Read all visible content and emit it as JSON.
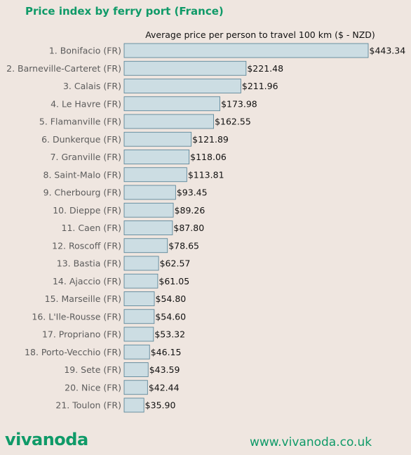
{
  "title": "Price index by ferry port (France)",
  "logo_text": "vivanoda",
  "website": "www.vivanoda.co.uk",
  "colors": {
    "background": "#efe6e0",
    "bar_fill": "#ccdde3",
    "bar_stroke": "#4f7d92",
    "brand": "#0f9a68"
  },
  "chart_data": {
    "type": "bar",
    "orientation": "horizontal",
    "subtitle": "Average price per person to travel 100 km ($ - NZD)",
    "categories": [
      "1. Bonifacio (FR)",
      "2. Barneville-Carteret (FR)",
      "3. Calais (FR)",
      "4. Le Havre (FR)",
      "5. Flamanville (FR)",
      "6. Dunkerque (FR)",
      "7. Granville (FR)",
      "8. Saint-Malo (FR)",
      "9. Cherbourg (FR)",
      "10. Dieppe (FR)",
      "11. Caen (FR)",
      "12. Roscoff (FR)",
      "13. Bastia (FR)",
      "14. Ajaccio (FR)",
      "15. Marseille (FR)",
      "16. L'Ile-Rousse (FR)",
      "17. Propriano (FR)",
      "18. Porto-Vecchio (FR)",
      "19. Sete (FR)",
      "20. Nice (FR)",
      "21. Toulon (FR)"
    ],
    "values": [
      443.34,
      221.48,
      211.96,
      173.98,
      162.55,
      121.89,
      118.06,
      113.81,
      93.45,
      89.26,
      87.8,
      78.65,
      62.57,
      61.05,
      54.8,
      54.6,
      53.32,
      46.15,
      43.59,
      42.44,
      35.9
    ],
    "value_labels": [
      "$443.34",
      "$221.48",
      "$211.96",
      "$173.98",
      "$162.55",
      "$121.89",
      "$118.06",
      "$113.81",
      "$93.45",
      "$89.26",
      "$87.80",
      "$78.65",
      "$62.57",
      "$61.05",
      "$54.80",
      "$54.60",
      "$53.32",
      "$46.15",
      "$43.59",
      "$42.44",
      "$35.90"
    ],
    "xlim": [
      0,
      443.34
    ],
    "grid": false,
    "legend": "none"
  }
}
